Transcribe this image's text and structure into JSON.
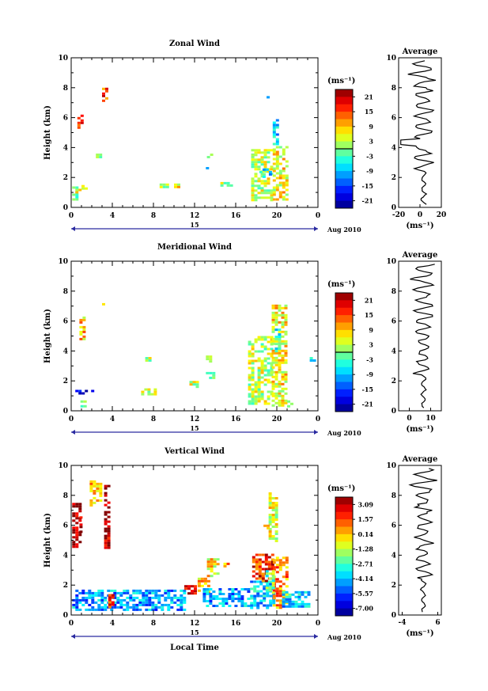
{
  "chart_data": [
    {
      "type": "heatmap",
      "title": "Zonal Wind",
      "ylabel": "Height (km)",
      "xlabel": "",
      "x_ticks": [
        "0",
        "4",
        "8",
        "12",
        "16",
        "20",
        "0"
      ],
      "y_ticks": [
        "0",
        "2",
        "4",
        "6",
        "8",
        "10"
      ],
      "ylim": [
        0,
        10
      ],
      "xlim": [
        0,
        24
      ],
      "date_label": "15",
      "month_label": "Aug 2010",
      "colorbar": {
        "unit": "(ms⁻¹)",
        "labels": [
          "21",
          "15",
          "9",
          "3",
          "-3",
          "-9",
          "-15",
          "-21"
        ],
        "range": [
          -24,
          24
        ]
      },
      "cells": [
        {
          "x": 0.1,
          "y": 0.5,
          "w": 0.5,
          "h": 0.9,
          "v": 0
        },
        {
          "x": 0.4,
          "y": 1.0,
          "w": 0.4,
          "h": 0.4,
          "v": 3
        },
        {
          "x": 1.0,
          "y": 1.3,
          "w": 0.4,
          "h": 0.2,
          "v": 6
        },
        {
          "x": 0.6,
          "y": 5.4,
          "w": 0.5,
          "h": 0.8,
          "v": 18
        },
        {
          "x": 3.0,
          "y": 7.2,
          "w": 0.4,
          "h": 0.8,
          "v": 15
        },
        {
          "x": 2.4,
          "y": 3.4,
          "w": 0.6,
          "h": 0.2,
          "v": -3
        },
        {
          "x": 7.0,
          "y": 2.2,
          "w": 0.3,
          "h": 0.3,
          "v": 2
        },
        {
          "x": 8.6,
          "y": 1.4,
          "w": 0.8,
          "h": 0.2,
          "v": 4
        },
        {
          "x": 10.0,
          "y": 1.4,
          "w": 0.8,
          "h": 0.2,
          "v": 6
        },
        {
          "x": 13.2,
          "y": 3.4,
          "w": 0.6,
          "h": 0.2,
          "v": -3
        },
        {
          "x": 13.1,
          "y": 2.4,
          "w": 0.3,
          "h": 0.3,
          "v": -6
        },
        {
          "x": 14.2,
          "y": 1.5,
          "w": 1.5,
          "h": 0.2,
          "v": 3
        },
        {
          "x": 17.2,
          "y": 3.4,
          "w": 0.6,
          "h": 0.2,
          "v": -3
        },
        {
          "x": 17.5,
          "y": 0.5,
          "w": 2.0,
          "h": 3.4,
          "v": 3
        },
        {
          "x": 19.6,
          "y": 0.6,
          "w": 1.3,
          "h": 3.5,
          "v": 6
        },
        {
          "x": 19.6,
          "y": 4.3,
          "w": 0.6,
          "h": 1.6,
          "v": -9
        },
        {
          "x": 19.0,
          "y": 7.4,
          "w": 0.3,
          "h": 0.2,
          "v": -6
        },
        {
          "x": 18.3,
          "y": 2.0,
          "w": 1.0,
          "h": 0.6,
          "v": -6
        }
      ],
      "average_panel": {
        "title": "Average",
        "xlabel": "(ms⁻¹)",
        "x_ticks": [
          "-20",
          "0",
          "20"
        ],
        "xlim": [
          -20,
          20
        ]
      }
    },
    {
      "type": "heatmap",
      "title": "Meridional Wind",
      "ylabel": "Height (km)",
      "xlabel": "",
      "x_ticks": [
        "0",
        "4",
        "8",
        "12",
        "16",
        "20",
        "0"
      ],
      "y_ticks": [
        "0",
        "2",
        "4",
        "6",
        "8",
        "10"
      ],
      "ylim": [
        0,
        10
      ],
      "xlim": [
        0,
        24
      ],
      "date_label": "15",
      "month_label": "Aug 2010",
      "colorbar": {
        "unit": "(ms⁻¹)",
        "labels": [
          "21",
          "15",
          "9",
          "3",
          "-3",
          "-9",
          "-15",
          "-21"
        ],
        "range": [
          -24,
          24
        ]
      },
      "cells": [
        {
          "x": 0.4,
          "y": 1.1,
          "w": 1.8,
          "h": 0.3,
          "v": -18
        },
        {
          "x": 0.9,
          "y": 0.3,
          "w": 0.6,
          "h": 0.4,
          "v": -3
        },
        {
          "x": 0.8,
          "y": 4.8,
          "w": 0.5,
          "h": 1.5,
          "v": 9
        },
        {
          "x": 3.0,
          "y": 6.9,
          "w": 0.3,
          "h": 0.3,
          "v": 12
        },
        {
          "x": 7.2,
          "y": 3.3,
          "w": 0.4,
          "h": 0.3,
          "v": 3
        },
        {
          "x": 6.8,
          "y": 1.1,
          "w": 1.3,
          "h": 0.4,
          "v": 3
        },
        {
          "x": 11.5,
          "y": 1.6,
          "w": 0.7,
          "h": 0.4,
          "v": 3
        },
        {
          "x": 13.1,
          "y": 2.2,
          "w": 0.7,
          "h": 0.4,
          "v": 3
        },
        {
          "x": 13.1,
          "y": 3.3,
          "w": 0.5,
          "h": 0.4,
          "v": -3
        },
        {
          "x": 17.2,
          "y": 0.4,
          "w": 2.4,
          "h": 4.6,
          "v": 3
        },
        {
          "x": 19.5,
          "y": 0.3,
          "w": 1.5,
          "h": 6.8,
          "v": 6
        },
        {
          "x": 19.8,
          "y": 4.0,
          "w": 0.5,
          "h": 1.5,
          "v": -6
        },
        {
          "x": 21.0,
          "y": 0.3,
          "w": 0.5,
          "h": 0.4,
          "v": 6
        },
        {
          "x": 23.2,
          "y": 3.3,
          "w": 0.5,
          "h": 0.3,
          "v": -6
        }
      ],
      "average_panel": {
        "title": "Average",
        "xlabel": "(ms⁻¹)",
        "x_ticks": [
          "0",
          "10"
        ],
        "xlim": [
          -5,
          15
        ]
      }
    },
    {
      "type": "heatmap",
      "title": "Vertical Wind",
      "ylabel": "Height (km)",
      "xlabel": "Local Time",
      "x_ticks": [
        "0",
        "4",
        "8",
        "12",
        "16",
        "20",
        "0"
      ],
      "y_ticks": [
        "0",
        "2",
        "4",
        "6",
        "8",
        "10"
      ],
      "ylim": [
        0,
        10
      ],
      "xlim": [
        0,
        24
      ],
      "date_label": "15",
      "month_label": "Aug 2010",
      "colorbar": {
        "unit": "(ms⁻¹)",
        "labels": [
          "3.09",
          "1.57",
          "0.14",
          "-1.28",
          "-2.71",
          "-4.14",
          "-5.57",
          "-7.00"
        ],
        "range": [
          -7.7,
          3.8
        ]
      },
      "cells": [
        {
          "x": 0.1,
          "y": 0.4,
          "w": 11.0,
          "h": 1.3,
          "v": -4.5
        },
        {
          "x": 0.1,
          "y": 4.6,
          "w": 0.7,
          "h": 2.9,
          "v": 3.3
        },
        {
          "x": 0.8,
          "y": 5.6,
          "w": 0.3,
          "h": 1.0,
          "v": 3.3
        },
        {
          "x": 3.2,
          "y": 4.3,
          "w": 0.6,
          "h": 4.4,
          "v": 3.3
        },
        {
          "x": 1.8,
          "y": 7.4,
          "w": 1.1,
          "h": 1.6,
          "v": 0.4
        },
        {
          "x": 3.6,
          "y": 0.6,
          "w": 0.5,
          "h": 0.8,
          "v": 1.8
        },
        {
          "x": 11.0,
          "y": 1.5,
          "w": 1.0,
          "h": 0.5,
          "v": 2.5
        },
        {
          "x": 12.3,
          "y": 1.5,
          "w": 1.2,
          "h": 1.0,
          "v": 0.3
        },
        {
          "x": 13.2,
          "y": 2.6,
          "w": 1.0,
          "h": 1.2,
          "v": -0.4
        },
        {
          "x": 12.8,
          "y": 0.6,
          "w": 4.6,
          "h": 1.2,
          "v": -4.4
        },
        {
          "x": 17.4,
          "y": 0.5,
          "w": 2.2,
          "h": 1.8,
          "v": -4.0
        },
        {
          "x": 17.6,
          "y": 2.3,
          "w": 2.0,
          "h": 1.8,
          "v": 2.0
        },
        {
          "x": 19.6,
          "y": 0.5,
          "w": 1.4,
          "h": 3.4,
          "v": 0.8
        },
        {
          "x": 19.2,
          "y": 5.0,
          "w": 0.9,
          "h": 3.2,
          "v": -0.8
        },
        {
          "x": 20.5,
          "y": 0.6,
          "w": 2.6,
          "h": 1.0,
          "v": -4.0
        },
        {
          "x": 18.9,
          "y": 1.5,
          "w": 0.8,
          "h": 1.5,
          "v": -2.2
        },
        {
          "x": 14.5,
          "y": 3.3,
          "w": 0.8,
          "h": 0.2,
          "v": 0.5
        },
        {
          "x": 18.7,
          "y": 5.8,
          "w": 0.6,
          "h": 0.4,
          "v": 0.5
        }
      ],
      "average_panel": {
        "title": "Average",
        "xlabel": "(ms⁻¹)",
        "x_ticks": [
          "-4",
          "6"
        ],
        "xlim": [
          -5,
          7
        ]
      }
    }
  ]
}
